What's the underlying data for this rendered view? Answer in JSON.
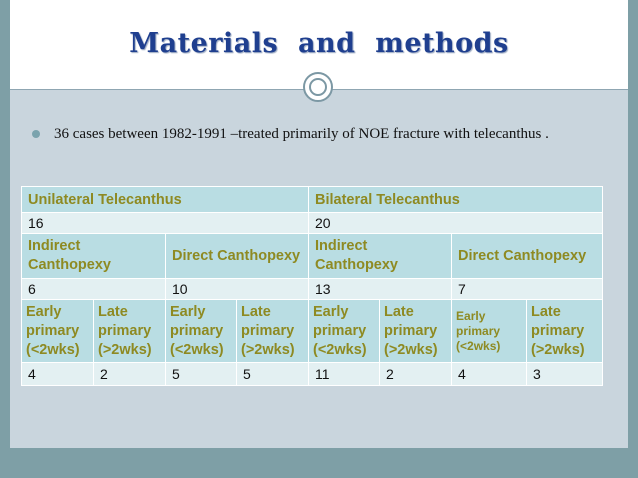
{
  "slide": {
    "title": "Materials  and  methods",
    "bullet": "36 cases between 1982-1991 –treated primarily of NOE fracture with telecanthus ."
  },
  "table": {
    "row1": [
      "Unilateral Telecanthus",
      "Bilateral Telecanthus"
    ],
    "row2": [
      "16",
      "20"
    ],
    "row3": [
      "Indirect Canthopexy",
      "Direct Canthopexy",
      "Indirect Canthopexy",
      "Direct Canthopexy"
    ],
    "row4": [
      "6",
      "10",
      "13",
      "7"
    ],
    "row5": [
      "Early primary (<2wks)",
      "Late primary (>2wks)",
      "Early primary (<2wks)",
      "Late primary (>2wks)",
      "Early primary (<2wks)",
      "Late primary (>2wks)",
      "Early primary (<2wks)",
      "Late primary (>2wks)"
    ],
    "row6": [
      "4",
      "2",
      "5",
      "5",
      "11",
      "2",
      "4",
      "3"
    ]
  },
  "colors": {
    "title": "#1f3f8f",
    "header_cell": "#b9dde3",
    "header_text": "#8e8a22",
    "value_cell": "#e3f0f2",
    "slide_bg": "#c9d5dd",
    "frame": "#7e9fa6"
  },
  "icons": {
    "bullet": "round-bullet-icon",
    "ornament": "ring-ornament-icon"
  }
}
